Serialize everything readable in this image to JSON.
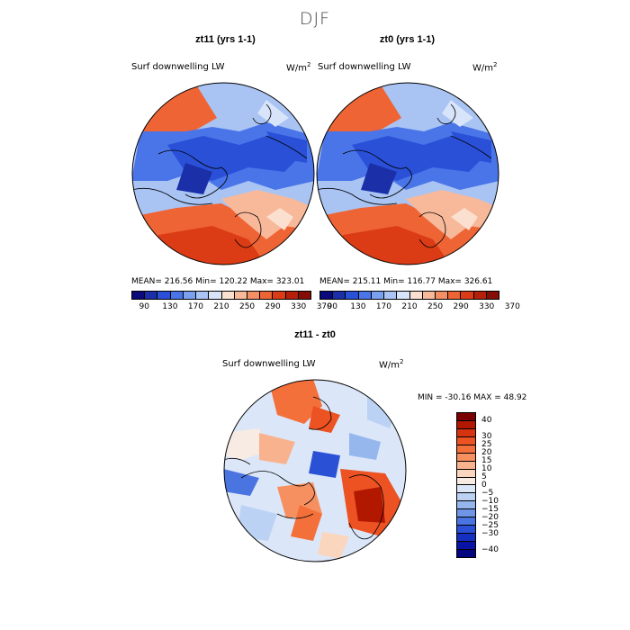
{
  "title": "DJF",
  "panels": [
    {
      "name": "zt11",
      "title": "zt11 (yrs 1-1)",
      "variable": "Surf downwelling LW",
      "units": "W/m",
      "units_sup": "2",
      "stats": "MEAN= 216.56   Min= 120.22   Max= 323.01"
    },
    {
      "name": "zt0",
      "title": "zt0 (yrs 1-1)",
      "variable": "Surf downwelling LW",
      "units": "W/m",
      "units_sup": "2",
      "stats": "MEAN= 215.11   Min= 116.77   Max= 326.61"
    }
  ],
  "abs_colorbar": {
    "colors": [
      "#0a0a7a",
      "#1a2fa8",
      "#2a50d8",
      "#4a75e8",
      "#7aa0f0",
      "#aac4f5",
      "#d7e4fa",
      "#fbe0cf",
      "#f8b89a",
      "#f48e64",
      "#ee6434",
      "#db3c16",
      "#b5200b",
      "#850d06"
    ],
    "ticks": [
      "90",
      "130",
      "170",
      "210",
      "250",
      "290",
      "330",
      "370"
    ]
  },
  "diff": {
    "title": "zt11 - zt0",
    "variable": "Surf downwelling LW",
    "units": "W/m",
    "units_sup": "2",
    "stats": "MIN = -30.16 MAX =  48.92"
  },
  "diff_colorbar": {
    "colors": [
      "#7a0000",
      "#b21800",
      "#d63410",
      "#ec5222",
      "#f4703a",
      "#f79060",
      "#f9b28e",
      "#fbd6be",
      "#f8ebe3",
      "#dbe7f8",
      "#bcd2f4",
      "#96b6ee",
      "#6e95e6",
      "#4a74e0",
      "#2a50d6",
      "#1530c0",
      "#0a14a4",
      "#030680"
    ],
    "ticks": [
      "40",
      "30",
      "25",
      "20",
      "15",
      "10",
      "5",
      "0",
      "−5",
      "−10",
      "−15",
      "−20",
      "−25",
      "−30",
      "−40"
    ]
  }
}
